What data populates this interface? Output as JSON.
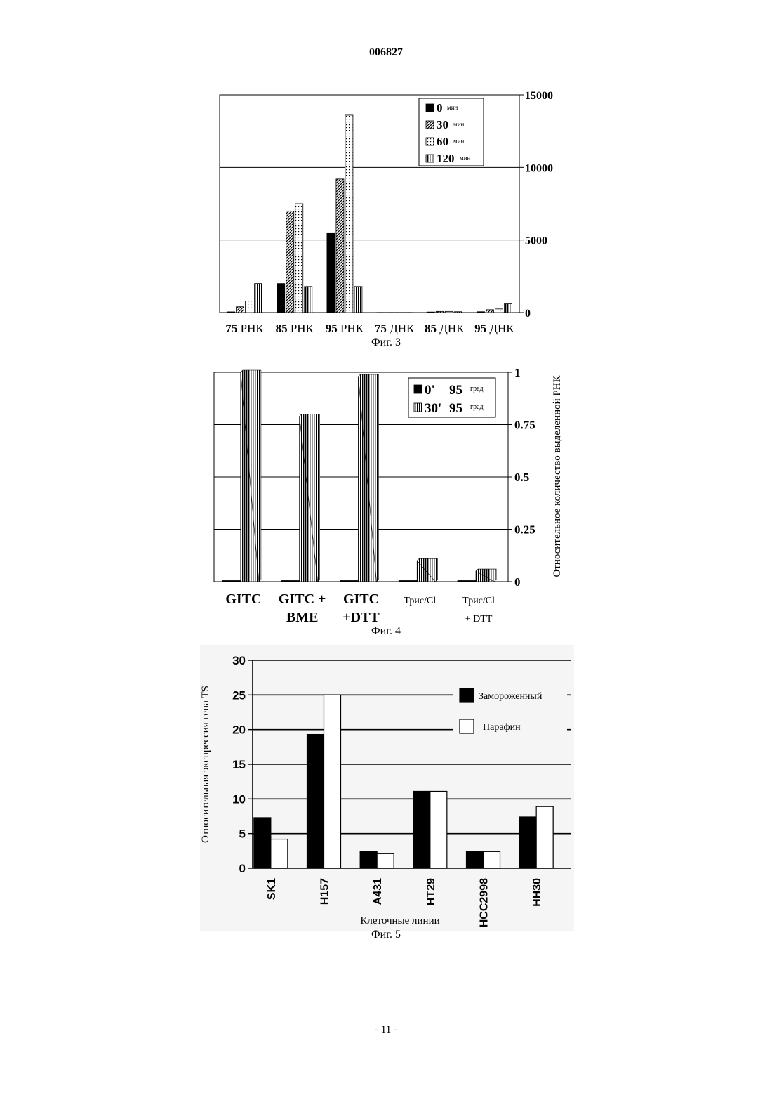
{
  "page": {
    "header": "006827",
    "footer": "- 11 -"
  },
  "figures": [
    {
      "caption": "Фиг. 3",
      "legend_unit": "мин",
      "chart_data": {
        "type": "bar",
        "categories": [
          {
            "num": "75",
            "word": "РНК"
          },
          {
            "num": "85",
            "word": "РНК"
          },
          {
            "num": "95",
            "word": "РНК"
          },
          {
            "num": "75",
            "word": "ДНК"
          },
          {
            "num": "85",
            "word": "ДНК"
          },
          {
            "num": "95",
            "word": "ДНК"
          }
        ],
        "series": [
          {
            "name": "0",
            "values": [
              50,
              2000,
              5500,
              10,
              40,
              60
            ]
          },
          {
            "name": "30",
            "values": [
              400,
              7000,
              9200,
              10,
              80,
              200
            ]
          },
          {
            "name": "60",
            "values": [
              800,
              7500,
              13600,
              10,
              80,
              250
            ]
          },
          {
            "name": "120",
            "values": [
              2000,
              1800,
              1800,
              10,
              60,
              600
            ]
          }
        ],
        "ylim": [
          0,
          15000
        ],
        "yticks": [
          "0",
          "5000",
          "10000",
          "15000"
        ],
        "grid": true,
        "legend_position": "top-right",
        "y_axis_side": "right",
        "patterns": [
          "solid",
          "diagonal",
          "dots",
          "vertical"
        ]
      }
    },
    {
      "caption": "Фиг. 4",
      "legend_unit": "град",
      "ylabel": "Относительное количество выделенной РНК",
      "chart_data": {
        "type": "bar",
        "categories": [
          {
            "lines": [
              "GITC"
            ],
            "bold": true
          },
          {
            "lines": [
              "GITC +",
              "BME"
            ],
            "bold": true
          },
          {
            "lines": [
              "GITC",
              "+DTT"
            ],
            "bold": true
          },
          {
            "lines": [
              "Трис/Cl"
            ],
            "bold": false
          },
          {
            "lines": [
              "Трис/Cl",
              "+ DTT"
            ],
            "bold": false
          }
        ],
        "series": [
          {
            "name": "0'",
            "temp": "95",
            "values": [
              0.005,
              0.005,
              0.005,
              0.005,
              0.005
            ]
          },
          {
            "name": "30'",
            "temp": "95",
            "values": [
              1.0,
              0.79,
              0.98,
              0.1,
              0.05
            ]
          }
        ],
        "ylim": [
          0,
          1
        ],
        "yticks": [
          "0",
          "0.25",
          "0.5",
          "0.75",
          "1"
        ],
        "grid": true,
        "legend_position": "top-right",
        "y_axis_side": "right",
        "patterns": [
          "solid",
          "vertical"
        ]
      }
    },
    {
      "caption": "Фиг. 5",
      "ylabel": "Относительная экспрессия гена TS",
      "xlabel": "Клеточные линии",
      "chart_data": {
        "type": "bar",
        "categories": [
          "SK1",
          "H157",
          "A431",
          "HT29",
          "HCC2998",
          "HH30"
        ],
        "series": [
          {
            "name": "Замороженный",
            "values": [
              7.3,
              19.3,
              2.4,
              11.1,
              2.4,
              7.4
            ]
          },
          {
            "name": "Парафин",
            "values": [
              4.2,
              25.0,
              2.1,
              11.1,
              2.4,
              8.9
            ]
          }
        ],
        "ylim": [
          0,
          30
        ],
        "yticks": [
          "0",
          "5",
          "10",
          "15",
          "20",
          "25",
          "30"
        ],
        "grid": true,
        "legend_position": "top-right",
        "y_axis_side": "left",
        "colors": [
          "#000000",
          "#ffffff"
        ]
      }
    }
  ]
}
